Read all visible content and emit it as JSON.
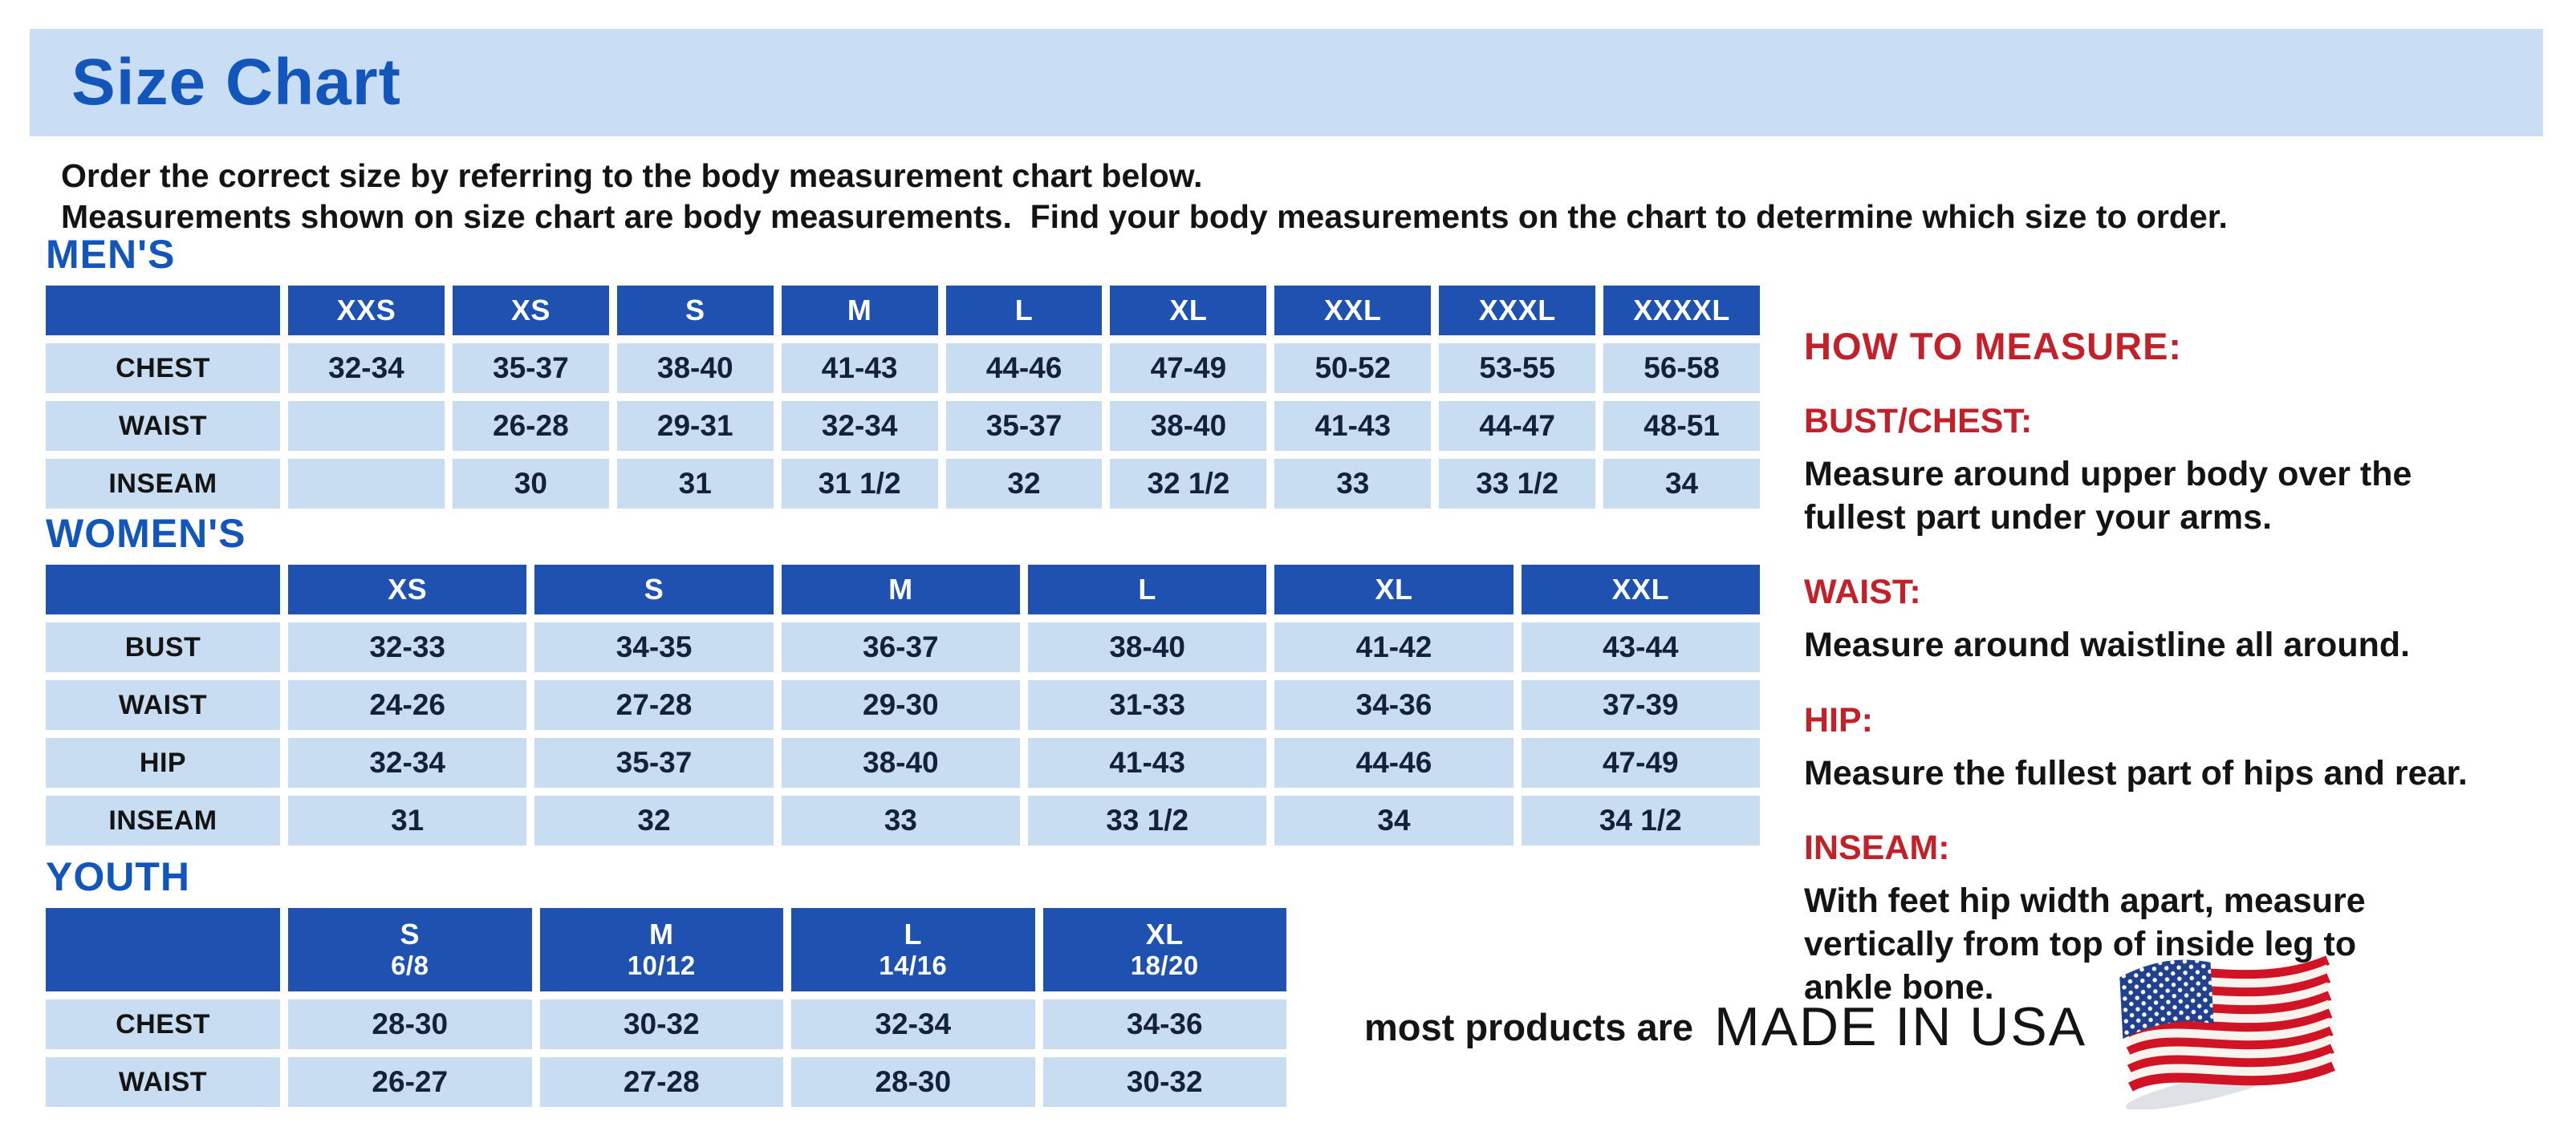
{
  "page": {
    "title": "Size Chart",
    "intro_line1": "Order the correct size by referring to the body measurement chart below.",
    "intro_line2": "Measurements shown on size chart are body measurements.  Find your body measurements on the chart to determine which size to order."
  },
  "colors": {
    "banner_bg": "#c9def4",
    "header_blue": "#1f51b0",
    "cell_blue": "#c8dcf2",
    "heading_blue": "#1356bb",
    "red": "#c32129",
    "ink": "#141414",
    "number_ink": "#13223a"
  },
  "tables": [
    {
      "id": "mens",
      "heading": "MEN'S",
      "columns": [
        {
          "label": "XXS",
          "sub": ""
        },
        {
          "label": "XS",
          "sub": ""
        },
        {
          "label": "S",
          "sub": ""
        },
        {
          "label": "M",
          "sub": ""
        },
        {
          "label": "L",
          "sub": ""
        },
        {
          "label": "XL",
          "sub": ""
        },
        {
          "label": "XXL",
          "sub": ""
        },
        {
          "label": "XXXL",
          "sub": ""
        },
        {
          "label": "XXXXL",
          "sub": ""
        }
      ],
      "rows": [
        {
          "label": "CHEST",
          "cells": [
            "32-34",
            "35-37",
            "38-40",
            "41-43",
            "44-46",
            "47-49",
            "50-52",
            "53-55",
            "56-58"
          ]
        },
        {
          "label": "WAIST",
          "cells": [
            "",
            "26-28",
            "29-31",
            "32-34",
            "35-37",
            "38-40",
            "41-43",
            "44-47",
            "48-51"
          ]
        },
        {
          "label": "INSEAM",
          "cells": [
            "",
            "30",
            "31",
            "31 1/2",
            "32",
            "32 1/2",
            "33",
            "33 1/2",
            "34"
          ]
        }
      ]
    },
    {
      "id": "womens",
      "heading": "WOMEN'S",
      "columns": [
        {
          "label": "XS",
          "sub": ""
        },
        {
          "label": "S",
          "sub": ""
        },
        {
          "label": "M",
          "sub": ""
        },
        {
          "label": "L",
          "sub": ""
        },
        {
          "label": "XL",
          "sub": ""
        },
        {
          "label": "XXL",
          "sub": ""
        }
      ],
      "rows": [
        {
          "label": "BUST",
          "cells": [
            "32-33",
            "34-35",
            "36-37",
            "38-40",
            "41-42",
            "43-44"
          ]
        },
        {
          "label": "WAIST",
          "cells": [
            "24-26",
            "27-28",
            "29-30",
            "31-33",
            "34-36",
            "37-39"
          ]
        },
        {
          "label": "HIP",
          "cells": [
            "32-34",
            "35-37",
            "38-40",
            "41-43",
            "44-46",
            "47-49"
          ]
        },
        {
          "label": "INSEAM",
          "cells": [
            "31",
            "32",
            "33",
            "33 1/2",
            "34",
            "34 1/2"
          ]
        }
      ]
    },
    {
      "id": "youth",
      "heading": "YOUTH",
      "columns": [
        {
          "label": "S",
          "sub": "6/8"
        },
        {
          "label": "M",
          "sub": "10/12"
        },
        {
          "label": "L",
          "sub": "14/16"
        },
        {
          "label": "XL",
          "sub": "18/20"
        }
      ],
      "rows": [
        {
          "label": "CHEST",
          "cells": [
            "28-30",
            "30-32",
            "32-34",
            "34-36"
          ]
        },
        {
          "label": "WAIST",
          "cells": [
            "26-27",
            "27-28",
            "28-30",
            "30-32"
          ]
        }
      ]
    }
  ],
  "how_to_measure": {
    "heading": "HOW TO MEASURE:",
    "items": [
      {
        "term": "BUST/CHEST:",
        "description": "Measure around upper body over the\nfullest part under your arms."
      },
      {
        "term": "WAIST:",
        "description": "Measure around waistline all around."
      },
      {
        "term": "HIP:",
        "description": "Measure the fullest part of hips and rear."
      },
      {
        "term": "INSEAM:",
        "description": "With feet hip width apart, measure\nvertically from top of inside leg to\nankle bone."
      }
    ]
  },
  "footer": {
    "prefix": "most products are",
    "emphasis": "MADE IN USA",
    "flag_icon": "us-flag-icon"
  }
}
